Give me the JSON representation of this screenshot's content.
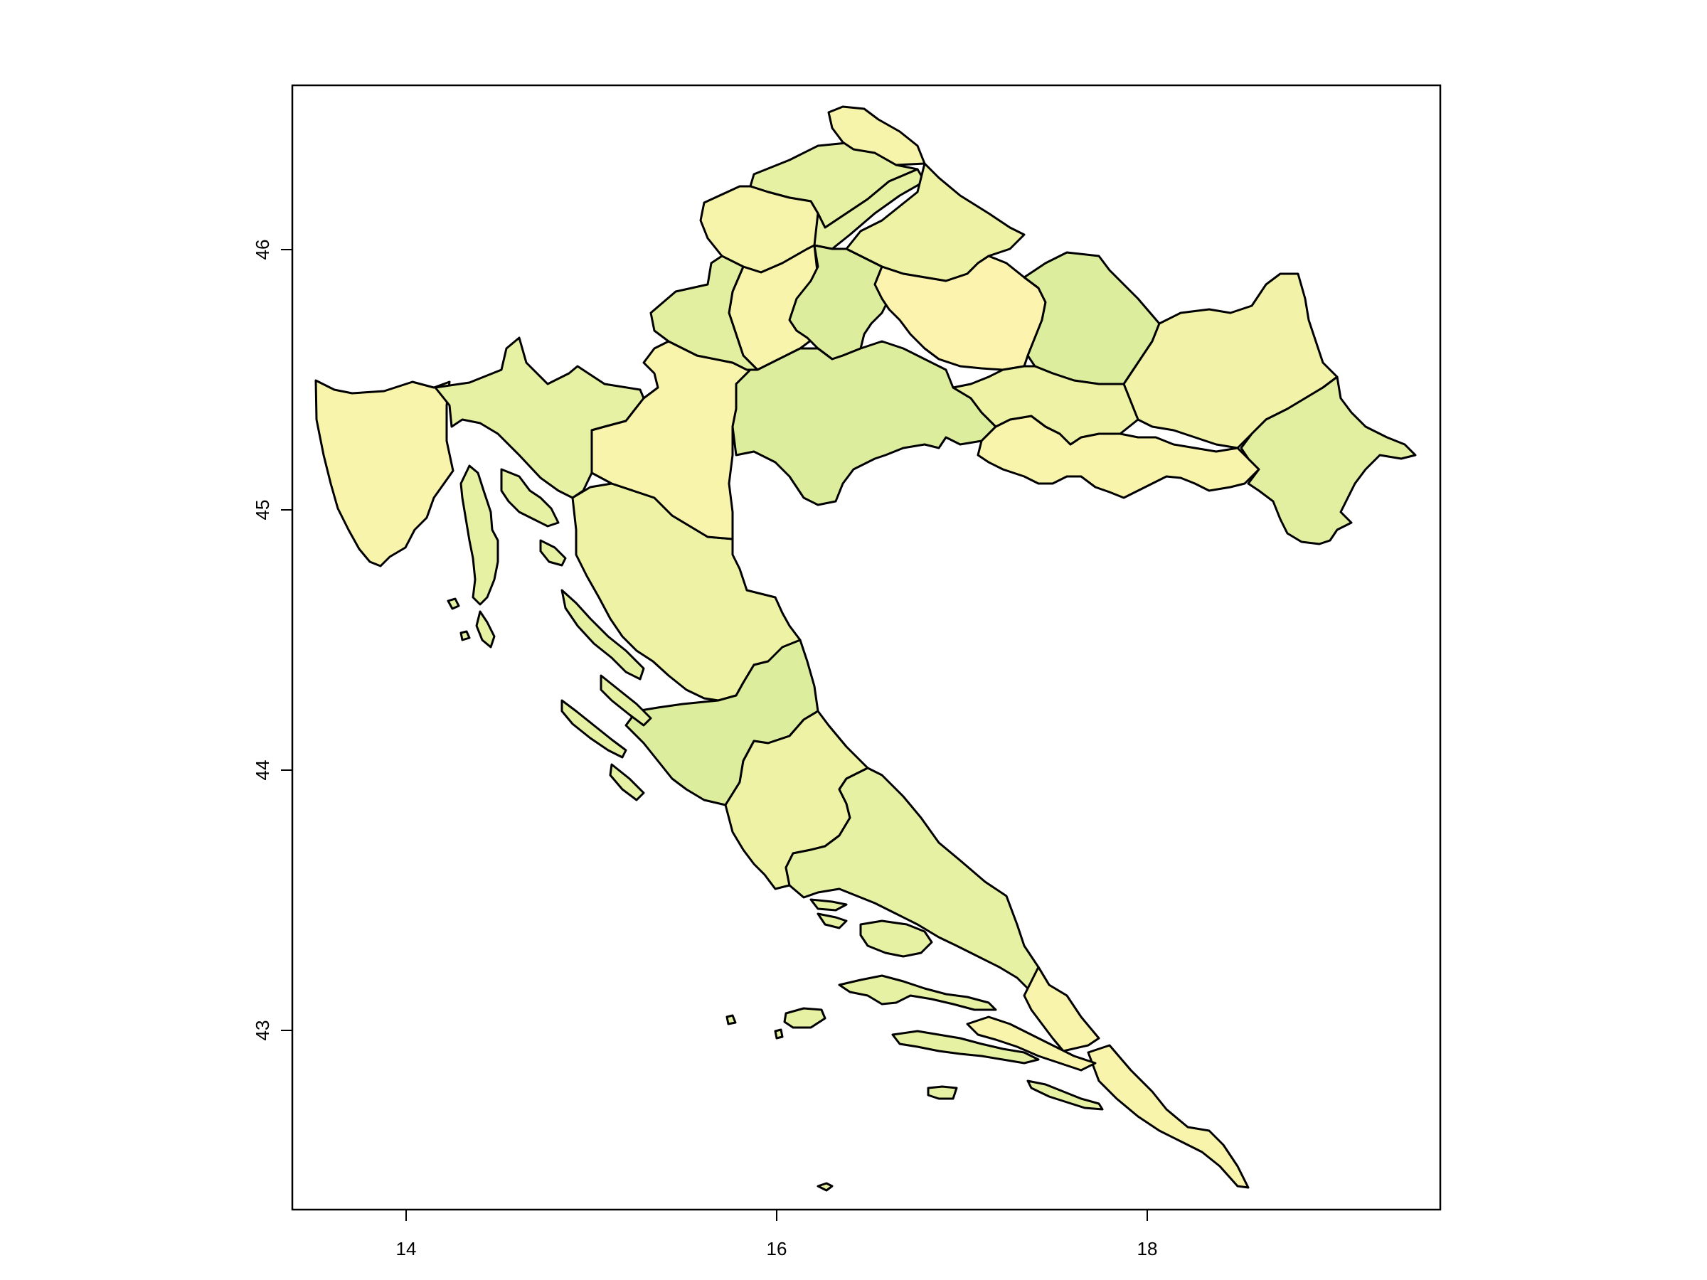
{
  "chart_data": {
    "type": "map",
    "title": "",
    "xlabel": "",
    "ylabel": "",
    "xlim": [
      13.37,
      19.55
    ],
    "ylim": [
      42.32,
      46.65
    ],
    "x_ticks": [
      "14",
      "16",
      "18"
    ],
    "y_ticks": [
      "43",
      "44",
      "45",
      "46"
    ],
    "grid": false,
    "legend": "none",
    "colors": {
      "c1": "#E7F1A4",
      "c2": "#DCEE9E",
      "c3": "#F2F3A8",
      "c4": "#EDF2A5",
      "c5": "#F8F4AC",
      "c6": "#FBF3AE",
      "c7": "#FFF4B2",
      "c8": "#E3EFA0",
      "c9": "#F5F4AA",
      "outline": "#000000"
    }
  }
}
